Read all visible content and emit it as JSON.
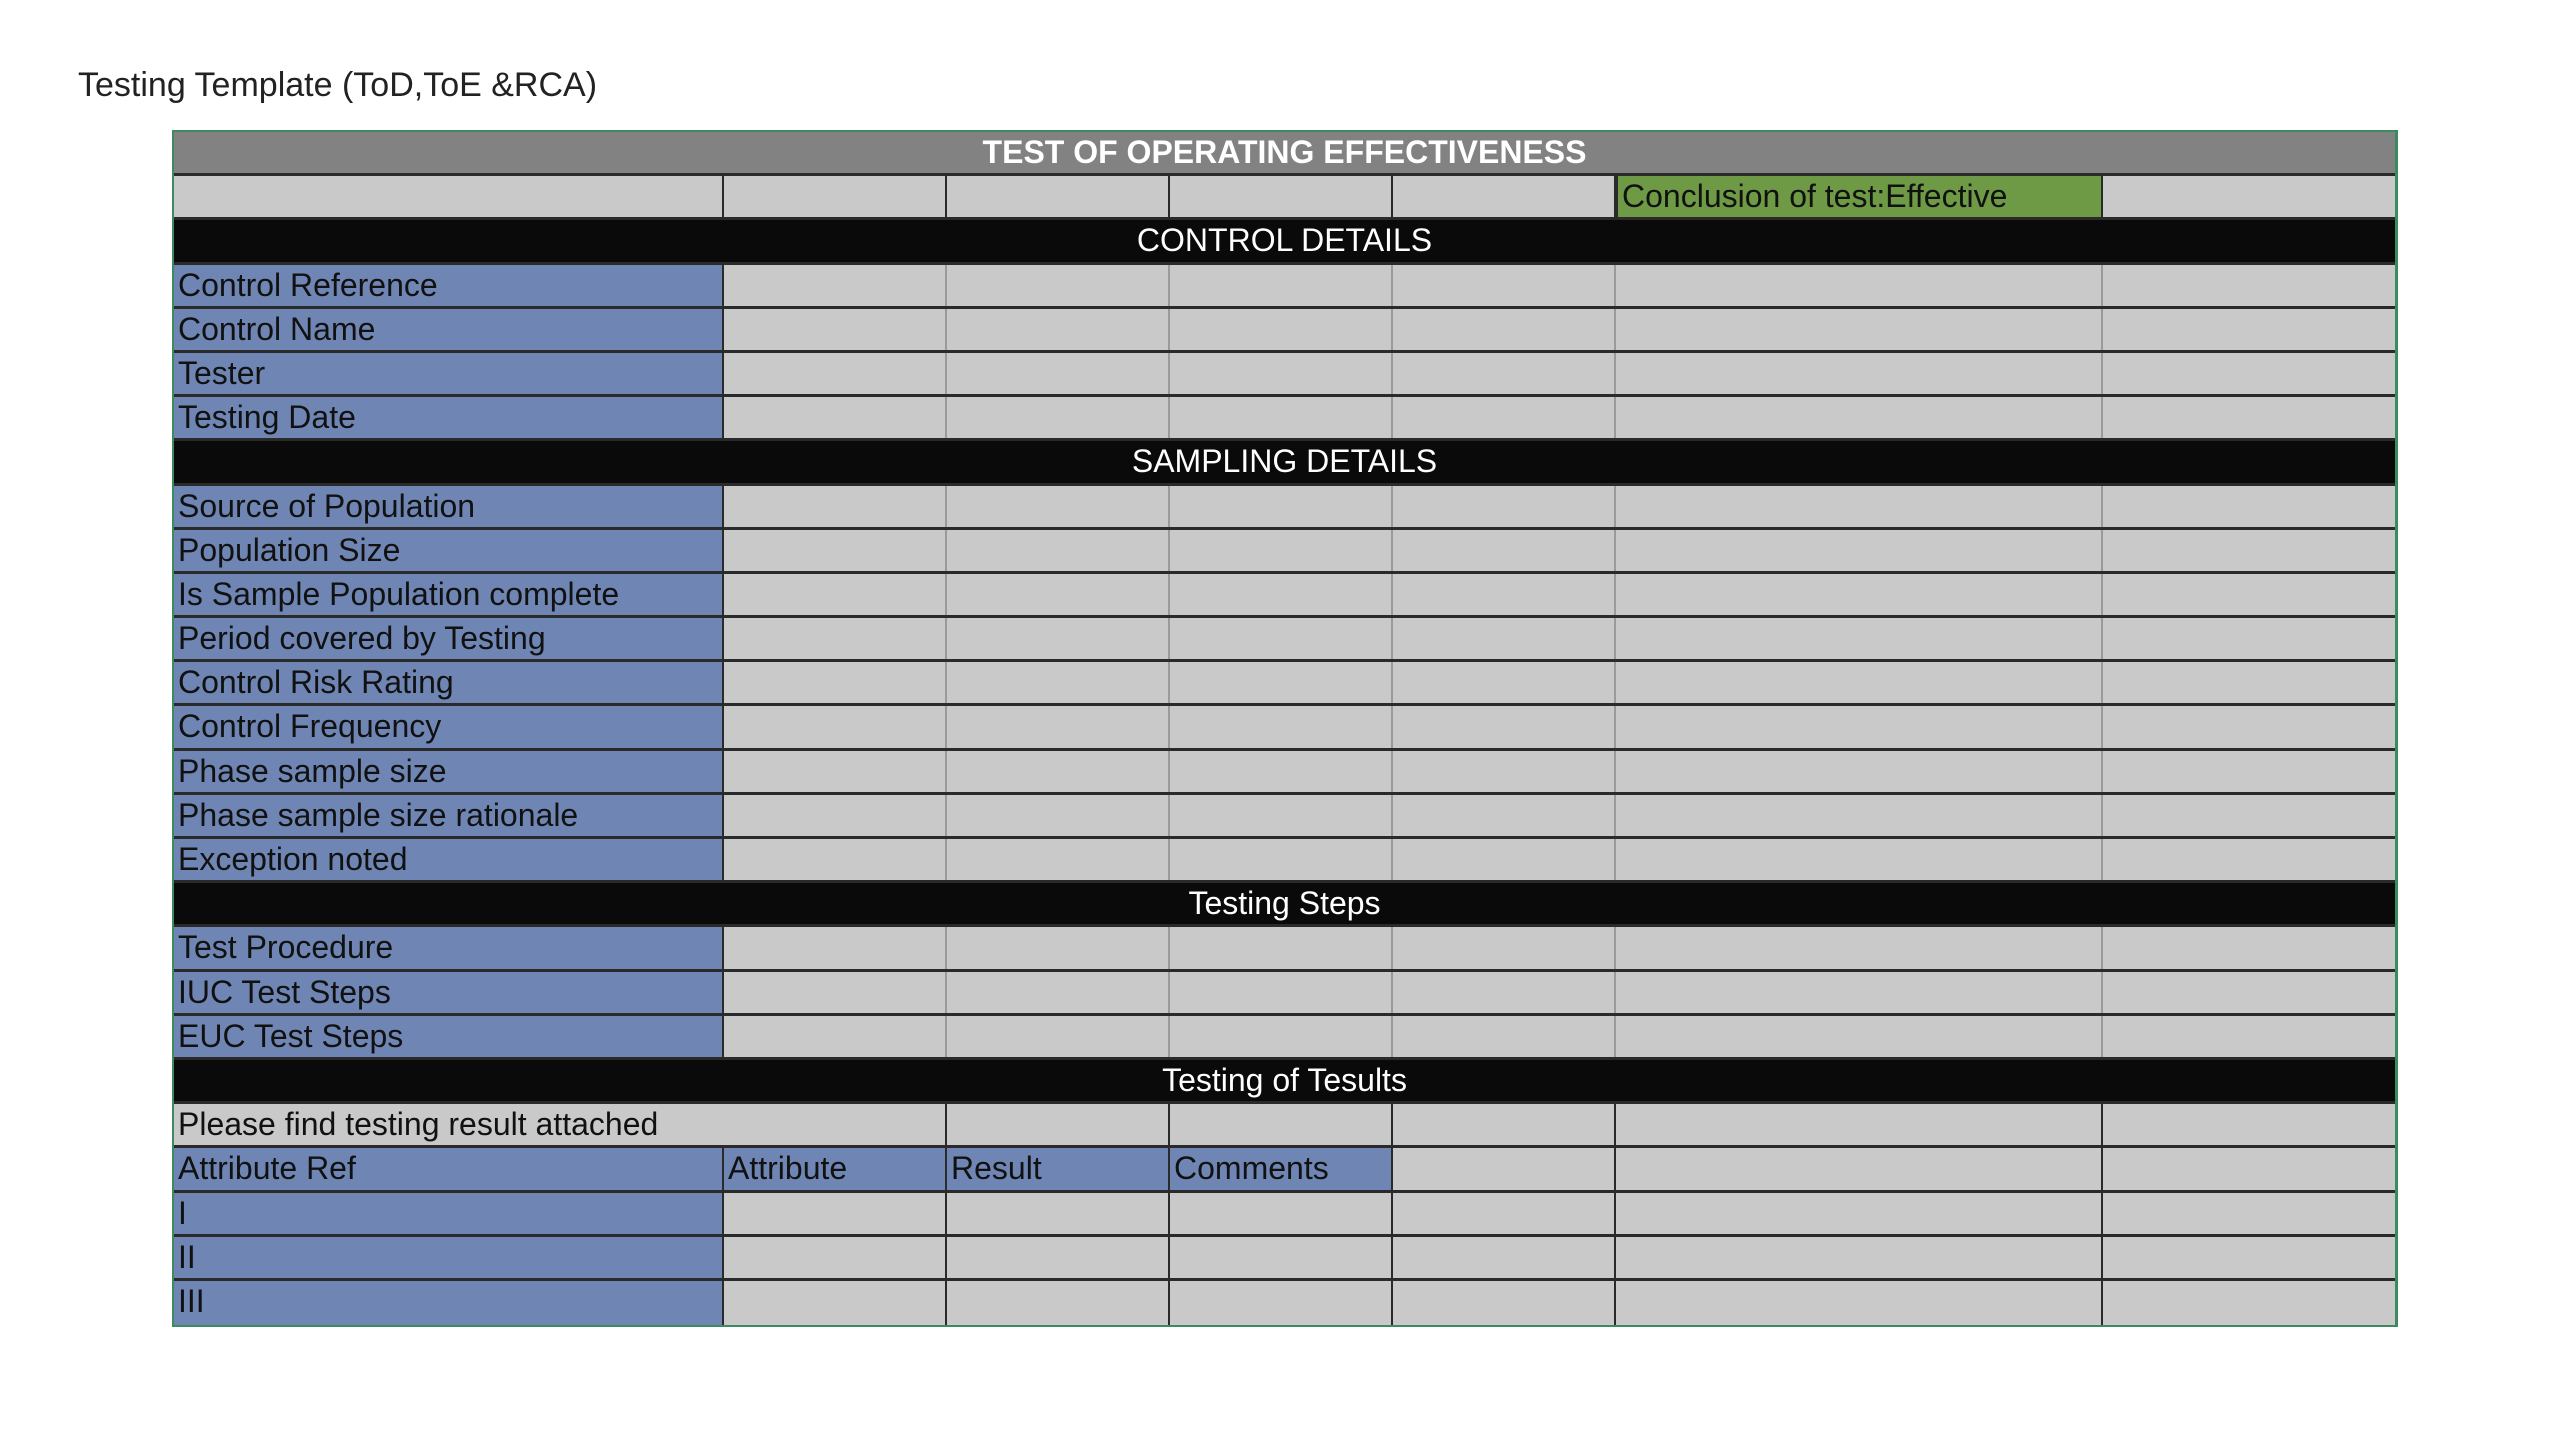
{
  "document_title": "Testing Template (ToD,ToE &RCA)",
  "header_title": "TEST OF OPERATING EFFECTIVENESS",
  "conclusion": "Conclusion of test:Effective",
  "colors": {
    "label_fill": "#6f86b4",
    "cell_fill": "#c9c9c9",
    "section_fill": "#0a0a0a",
    "header_fill": "#828282",
    "conclusion_fill": "#6f9a45"
  },
  "sections": [
    {
      "title": "CONTROL DETAILS",
      "rows": [
        "Control Reference",
        "Control Name",
        "Tester",
        "Testing Date"
      ]
    },
    {
      "title": "SAMPLING DETAILS",
      "rows": [
        "Source of Population",
        "Population Size",
        "Is Sample Population complete",
        "Period covered by Testing",
        "Control Risk Rating",
        "Control Frequency",
        "Phase sample size",
        "Phase sample size rationale",
        "Exception noted"
      ]
    },
    {
      "title": "Testing Steps",
      "rows": [
        "Test Procedure",
        "IUC Test Steps",
        "EUC Test Steps"
      ]
    }
  ],
  "results": {
    "title": "Testing of Tesults",
    "note": "Please find testing result attached",
    "columns": [
      "Attribute Ref",
      "Attribute",
      "Result",
      "Comments"
    ],
    "rows": [
      "I",
      "II",
      "III"
    ]
  }
}
